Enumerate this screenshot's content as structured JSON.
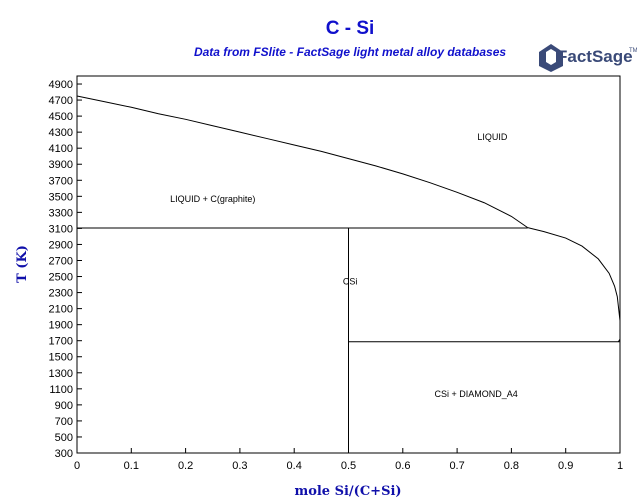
{
  "header": {
    "title": "C - Si",
    "subtitle": "Data from FSlite - FactSage light metal alloy databases",
    "logo_text": "FactSage",
    "logo_mark": "TM"
  },
  "colors": {
    "title": "#1010cc",
    "axis_title": "#1010aa",
    "lines": "#000000"
  },
  "chart_data": {
    "type": "line",
    "subtype": "phase-diagram",
    "title": "C - Si",
    "subtitle": "Data from FSlite - FactSage light metal alloy databases",
    "xlabel": "mole Si/(C+Si)",
    "ylabel": "T (K)",
    "xlim": [
      0,
      1
    ],
    "ylim": [
      300,
      5000
    ],
    "x_ticks": [
      0,
      0.1,
      0.2,
      0.3,
      0.4,
      0.5,
      0.6,
      0.7,
      0.8,
      0.9,
      1
    ],
    "x_tick_labels": [
      "0",
      "0.1",
      "0.2",
      "0.3",
      "0.4",
      "0.5",
      "0.6",
      "0.7",
      "0.8",
      "0.9",
      "1"
    ],
    "y_ticks": [
      300,
      500,
      700,
      900,
      1100,
      1300,
      1500,
      1700,
      1900,
      2100,
      2300,
      2500,
      2700,
      2900,
      3100,
      3300,
      3500,
      3700,
      3900,
      4100,
      4300,
      4500,
      4700,
      4900
    ],
    "grid": false,
    "legend": "none",
    "series": [
      {
        "role": "liquidus-graphite",
        "x": [
          0,
          0.05,
          0.1,
          0.15,
          0.2,
          0.25,
          0.3,
          0.35,
          0.4,
          0.45,
          0.5,
          0.55,
          0.6,
          0.65,
          0.7,
          0.75,
          0.8,
          0.83
        ],
        "y": [
          4750,
          4680,
          4610,
          4530,
          4460,
          4380,
          4300,
          4220,
          4140,
          4060,
          3970,
          3880,
          3780,
          3670,
          3550,
          3420,
          3250,
          3110
        ]
      },
      {
        "role": "liquidus-silicon-side",
        "x": [
          0.83,
          0.86,
          0.9,
          0.93,
          0.96,
          0.98,
          0.99,
          0.995,
          1.0
        ],
        "y": [
          3110,
          3060,
          2980,
          2880,
          2720,
          2540,
          2380,
          2250,
          1950
        ]
      },
      {
        "role": "peritectic-isotherm",
        "x": [
          0,
          0.83
        ],
        "y": [
          3105,
          3105
        ]
      },
      {
        "role": "SiC-line-compound",
        "x": [
          0.5,
          0.5
        ],
        "y": [
          300,
          3105
        ]
      },
      {
        "role": "eutectic-isotherm",
        "x": [
          0.5,
          1.0
        ],
        "y": [
          1687,
          1687
        ]
      },
      {
        "role": "Si-side-solidus",
        "x": [
          0.997,
          1.0
        ],
        "y": [
          1687,
          1720
        ]
      }
    ],
    "annotations": [
      {
        "text": "LIQUID",
        "x": 0.765,
        "y": 4200
      },
      {
        "text": "LIQUID + C(graphite)",
        "x": 0.25,
        "y": 3430
      },
      {
        "text": "CSi",
        "x": 0.503,
        "y": 2400
      },
      {
        "text": "CSi + DIAMOND_A4",
        "x": 0.735,
        "y": 1000
      }
    ]
  }
}
